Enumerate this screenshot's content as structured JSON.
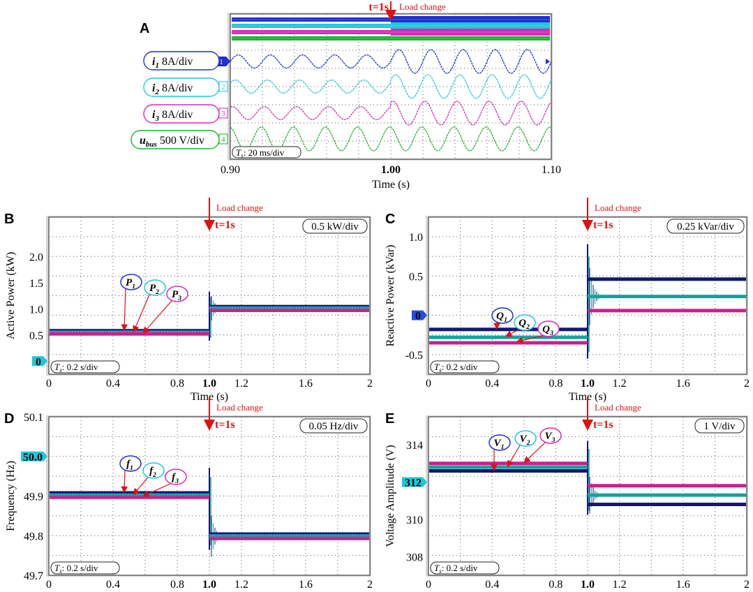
{
  "colors": {
    "i1": "#1f2fd0",
    "i2": "#1ec8d8",
    "i3": "#d62ab8",
    "ubus": "#18b428",
    "navy": "#101870",
    "teal": "#14a09a",
    "magenta": "#c8208c",
    "red": "#e01010",
    "plot_bg": "#ffffff",
    "grid": "#555555"
  },
  "chart_data": [
    {
      "panel": "A",
      "type": "line",
      "xlabel": "Time (s)",
      "x_ticks": [
        "0.90",
        "1.00",
        "1.10"
      ],
      "xlim": [
        0.9,
        1.1
      ],
      "event_time": 1.0,
      "event_label": "t=1s",
      "event_note": "Load change",
      "timebase": "Ts: 20 ms/div",
      "frequency_hz": 50,
      "channels": [
        {
          "marker": "1",
          "name": "i1",
          "label_unit": "8A/div",
          "amp_before": 0.55,
          "amp_after": 1.0
        },
        {
          "marker": "2",
          "name": "i2",
          "label_unit": "8A/div",
          "amp_before": 0.55,
          "amp_after": 1.0
        },
        {
          "marker": "3",
          "name": "i3",
          "label_unit": "8A/div",
          "amp_before": 0.55,
          "amp_after": 1.0
        },
        {
          "marker": "4",
          "name": "ubus",
          "label_unit": "500 V/div",
          "amp_before": 1.0,
          "amp_after": 1.0
        }
      ]
    },
    {
      "panel": "B",
      "type": "line",
      "ylabel": "Active Power (kW)",
      "xlabel": "Time (s)",
      "scale": "0.5 kW/div",
      "timebase": "Ts: 0.2 s/div",
      "event_label": "t=1s",
      "event_note": "Load change",
      "xlim": [
        0,
        2
      ],
      "ylim": [
        -0.25,
        2.75
      ],
      "x_ticks": [
        "0",
        "0.4",
        "0.8",
        "1.0",
        "1.2",
        "1.6",
        "2"
      ],
      "y_ticks": [
        "0",
        "0.5",
        "1.0",
        "1.5",
        "2.0"
      ],
      "zero_marker": "0",
      "series": [
        {
          "name": "P1",
          "before": 0.58,
          "after": 1.04
        },
        {
          "name": "P2",
          "before": 0.55,
          "after": 1.01
        },
        {
          "name": "P3",
          "before": 0.52,
          "after": 0.97
        }
      ]
    },
    {
      "panel": "C",
      "type": "line",
      "ylabel": "Reactive Power (kVar)",
      "xlabel": "Time (s)",
      "scale": "0.25 kVar/div",
      "timebase": "Ts: 0.2 s/div",
      "event_label": "t=1s",
      "event_note": "Load change",
      "xlim": [
        0,
        2
      ],
      "ylim": [
        -0.75,
        1.25
      ],
      "x_ticks": [
        "0",
        "0.4",
        "0.8",
        "1.0",
        "1.2",
        "1.6",
        "2"
      ],
      "y_ticks": [
        "-0.5",
        "0",
        "0.5",
        "1.0"
      ],
      "zero_marker": "0",
      "series": [
        {
          "name": "Q1",
          "before": -0.18,
          "after": 0.46
        },
        {
          "name": "Q2",
          "before": -0.28,
          "after": 0.24
        },
        {
          "name": "Q3",
          "before": -0.35,
          "after": 0.06
        }
      ]
    },
    {
      "panel": "D",
      "type": "line",
      "ylabel": "Frequency (Hz)",
      "xlabel": "Time (s)",
      "scale": "0.05 Hz/div",
      "timebase": "Ts: 0.2 s/div",
      "event_label": "t=1s",
      "event_note": "Load change",
      "xlim": [
        0,
        2
      ],
      "ylim": [
        49.7,
        50.1
      ],
      "x_ticks": [
        "0",
        "0.4",
        "0.8",
        "1.0",
        "1.2",
        "1.6",
        "2"
      ],
      "y_ticks": [
        "49.7",
        "49.8",
        "49.9",
        "50.0",
        "50.1"
      ],
      "zero_marker": "50.0",
      "series": [
        {
          "name": "f1",
          "before": 49.908,
          "after": 49.804
        },
        {
          "name": "f2",
          "before": 49.902,
          "after": 49.799
        },
        {
          "name": "f3",
          "before": 49.897,
          "after": 49.793
        }
      ]
    },
    {
      "panel": "E",
      "type": "line",
      "ylabel": "Voltage Amplitude (V)",
      "xlabel": "Time (s)",
      "scale": "1 V/div",
      "timebase": "Ts: 0.2 s/div",
      "event_label": "t=1s",
      "event_note": "Load change",
      "xlim": [
        0,
        2
      ],
      "ylim": [
        307,
        315.5
      ],
      "x_ticks": [
        "0",
        "0.4",
        "0.8",
        "1.0",
        "1.2",
        "1.6",
        "2"
      ],
      "y_ticks": [
        "308",
        "310",
        "312",
        "314"
      ],
      "zero_marker": "312",
      "series": [
        {
          "name": "V1",
          "before": 312.6,
          "after": 310.8
        },
        {
          "name": "V2",
          "before": 312.8,
          "after": 311.3
        },
        {
          "name": "V3",
          "before": 313.0,
          "after": 311.8
        }
      ]
    }
  ]
}
